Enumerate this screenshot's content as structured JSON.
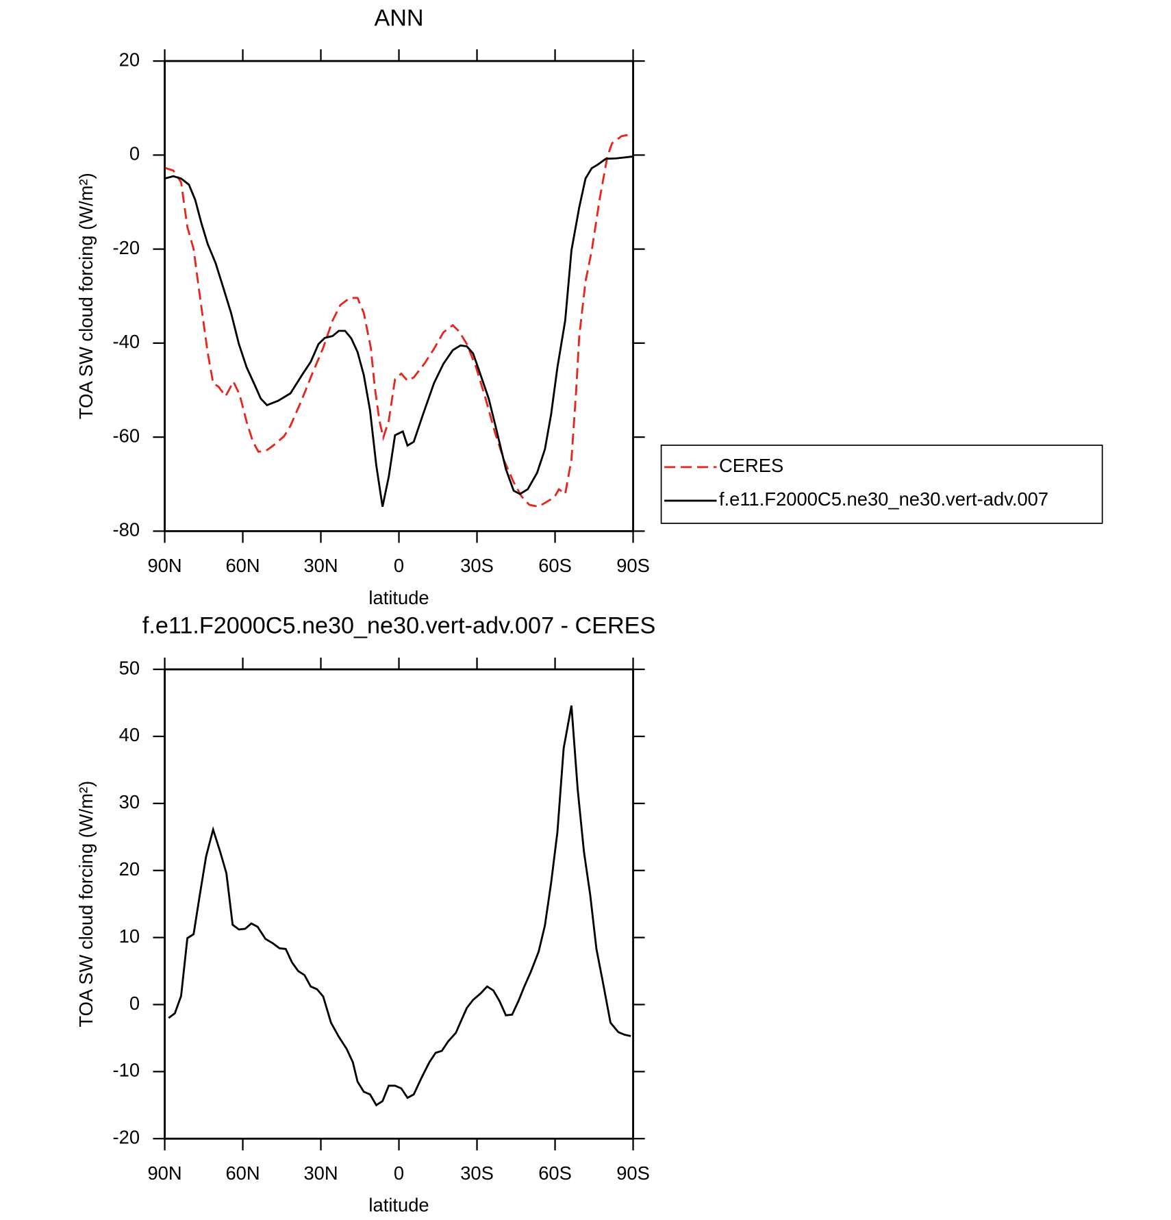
{
  "chart_data": [
    {
      "type": "line",
      "title": "ANN",
      "xlabel": "latitude",
      "ylabel": "TOA SW cloud forcing (W/m²)",
      "xlim": [
        90,
        -90
      ],
      "xticks": [
        {
          "value": 90,
          "label": "90N"
        },
        {
          "value": 60,
          "label": "60N"
        },
        {
          "value": 30,
          "label": "30N"
        },
        0,
        {
          "value": -30,
          "label": "30S"
        },
        {
          "value": -60,
          "label": "60S"
        },
        {
          "value": -90,
          "label": "90S"
        }
      ],
      "ylim": [
        -80,
        20
      ],
      "yticks": [
        -80,
        -60,
        -40,
        -20,
        0,
        20
      ],
      "legend": "right",
      "series": [
        {
          "name": "CERES",
          "color": "#e8251b",
          "line_style": "dashed",
          "x": [
            90,
            86.7,
            83.7,
            81.3,
            78.9,
            76.5,
            73.5,
            71.4,
            69.3,
            66.6,
            63.6,
            61.2,
            58.5,
            56.1,
            54,
            51.3,
            48.3,
            44.1,
            41.7,
            37.5,
            33.3,
            29.1,
            25.5,
            22.5,
            18.9,
            15.9,
            13.5,
            10.8,
            9.3,
            7.5,
            6,
            3.9,
            1.5,
            -0.9,
            -3.3,
            -5.7,
            -9.9,
            -13.5,
            -17.1,
            -20.7,
            -23.1,
            -26.1,
            -29.7,
            -33.3,
            -36.9,
            -40.5,
            -44.1,
            -47.1,
            -50.1,
            -53.7,
            -56.7,
            -59.7,
            -61.5,
            -63.9,
            -66.3,
            -68.1,
            -69.3,
            -71.7,
            -74.1,
            -77.1,
            -80.1,
            -81.9,
            -85.5,
            -90
          ],
          "values": [
            -2.7,
            -3.3,
            -5.8,
            -15.3,
            -20,
            -30,
            -42,
            -48.5,
            -49.3,
            -51.3,
            -48.2,
            -51,
            -56.8,
            -61,
            -63.1,
            -63,
            -61.8,
            -59.8,
            -57.6,
            -52.3,
            -46.5,
            -41,
            -35.2,
            -31.9,
            -30.4,
            -30.4,
            -33.6,
            -41,
            -49.3,
            -56.5,
            -60.1,
            -56.5,
            -47.7,
            -46.5,
            -48,
            -47.3,
            -44.3,
            -41.2,
            -37.7,
            -36.2,
            -37.5,
            -40.2,
            -45.2,
            -51.8,
            -59,
            -65.1,
            -69.6,
            -72.6,
            -74.4,
            -74.8,
            -73.8,
            -72.8,
            -71.1,
            -72.1,
            -64.8,
            -50.2,
            -38.5,
            -26.9,
            -20.3,
            -9.5,
            -0.3,
            2.5,
            4,
            4.5
          ]
        },
        {
          "name": "f.e11.F2000C5.ne30_ne30.vert-adv.007",
          "color": "#000000",
          "line_style": "solid",
          "x": [
            90,
            86.7,
            83.7,
            80.7,
            78.3,
            75.9,
            73.5,
            70.5,
            67.5,
            64.5,
            61.5,
            58.5,
            55.5,
            53.1,
            50.7,
            46.5,
            41.7,
            36.9,
            33.9,
            30.9,
            28.5,
            25.5,
            23.1,
            20.7,
            18.3,
            15.9,
            13.5,
            11.1,
            8.7,
            6.3,
            3.9,
            1.5,
            -1.5,
            -3.3,
            -5.7,
            -9.3,
            -13.5,
            -17.1,
            -20.7,
            -23.7,
            -26.1,
            -28.5,
            -30.9,
            -34.5,
            -37.5,
            -41.1,
            -44.1,
            -46.5,
            -49.5,
            -53.1,
            -56.1,
            -58.5,
            -60.9,
            -63.9,
            -66.3,
            -69.3,
            -71.7,
            -74.1,
            -76.5,
            -79.5,
            -83.7,
            -90
          ],
          "values": [
            -5,
            -4.5,
            -5,
            -6.3,
            -9.5,
            -14.5,
            -18.9,
            -22.9,
            -28.2,
            -33.6,
            -40.2,
            -45.2,
            -48.8,
            -51.8,
            -53.2,
            -52.3,
            -50.7,
            -46.5,
            -44,
            -40.2,
            -38.9,
            -38.5,
            -37.4,
            -37.4,
            -39,
            -41.9,
            -46.8,
            -54.3,
            -66,
            -74.8,
            -68.4,
            -59.6,
            -58.8,
            -61.8,
            -61,
            -55.1,
            -48.5,
            -44.4,
            -41.5,
            -40.5,
            -40.7,
            -42.2,
            -46,
            -51.8,
            -58.5,
            -66.8,
            -71.4,
            -72.1,
            -71.1,
            -67.6,
            -62.6,
            -55.1,
            -45.2,
            -35.2,
            -20.3,
            -11.1,
            -5,
            -2.8,
            -2,
            -0.8,
            -0.7,
            -0.3
          ]
        }
      ]
    },
    {
      "type": "line",
      "title": "f.e11.F2000C5.ne30_ne30.vert-adv.007 - CERES",
      "xlabel": "latitude",
      "ylabel": "TOA SW cloud forcing (W/m²)",
      "xlim": [
        90,
        -90
      ],
      "xticks": [
        {
          "value": 90,
          "label": "90N"
        },
        {
          "value": 60,
          "label": "60N"
        },
        {
          "value": 30,
          "label": "30N"
        },
        0,
        {
          "value": -30,
          "label": "30S"
        },
        {
          "value": -60,
          "label": "60S"
        },
        {
          "value": -90,
          "label": "90S"
        }
      ],
      "ylim": [
        -20,
        50
      ],
      "yticks": [
        -20,
        -10,
        0,
        10,
        20,
        30,
        40,
        50
      ],
      "color": "#000000",
      "x": [
        88.5,
        86.1,
        83.7,
        81.3,
        78.9,
        76.5,
        74.1,
        71.4,
        68.7,
        66.3,
        63.9,
        61.5,
        59.1,
        56.7,
        54.3,
        51.3,
        48.3,
        45.9,
        43.5,
        41.1,
        38.7,
        36.3,
        33.9,
        31.5,
        29.1,
        26.1,
        23.1,
        20.1,
        17.7,
        15.9,
        13.5,
        11.1,
        8.7,
        6.3,
        3.9,
        1.5,
        -0.9,
        -3.3,
        -5.7,
        -8.7,
        -11.7,
        -14.1,
        -16.5,
        -18.9,
        -21.9,
        -23.7,
        -26.1,
        -28.5,
        -31.5,
        -33.9,
        -36.3,
        -38.7,
        -41.1,
        -43.5,
        -45.9,
        -48.3,
        -50.7,
        -53.7,
        -56.1,
        -58.5,
        -60.9,
        -63.3,
        -66.3,
        -68.7,
        -71.1,
        -73.5,
        -75.9,
        -78.3,
        -81.3,
        -84.3,
        -86.7,
        -89.1
      ],
      "values": [
        -2,
        -1.3,
        1.3,
        9.9,
        10.5,
        16.4,
        22.1,
        26.1,
        22.8,
        19.6,
        11.9,
        11.2,
        11.3,
        12.1,
        11.6,
        9.8,
        9.1,
        8.4,
        8.3,
        6.3,
        5,
        4.4,
        2.7,
        2.3,
        1.2,
        -2.7,
        -4.8,
        -6.6,
        -8.6,
        -11.5,
        -13,
        -13.4,
        -15,
        -14.4,
        -12.1,
        -12.1,
        -12.5,
        -13.9,
        -13.4,
        -10.9,
        -8.6,
        -7.2,
        -6.9,
        -5.5,
        -4.2,
        -2.6,
        -0.5,
        0.7,
        1.7,
        2.7,
        2.1,
        0.5,
        -1.6,
        -1.5,
        0.5,
        2.8,
        4.9,
        7.9,
        11.8,
        18.2,
        25.7,
        38.2,
        44.6,
        32.1,
        22.8,
        16.4,
        8.3,
        3.5,
        -2.7,
        -4.1,
        -4.5,
        -4.7
      ]
    }
  ]
}
